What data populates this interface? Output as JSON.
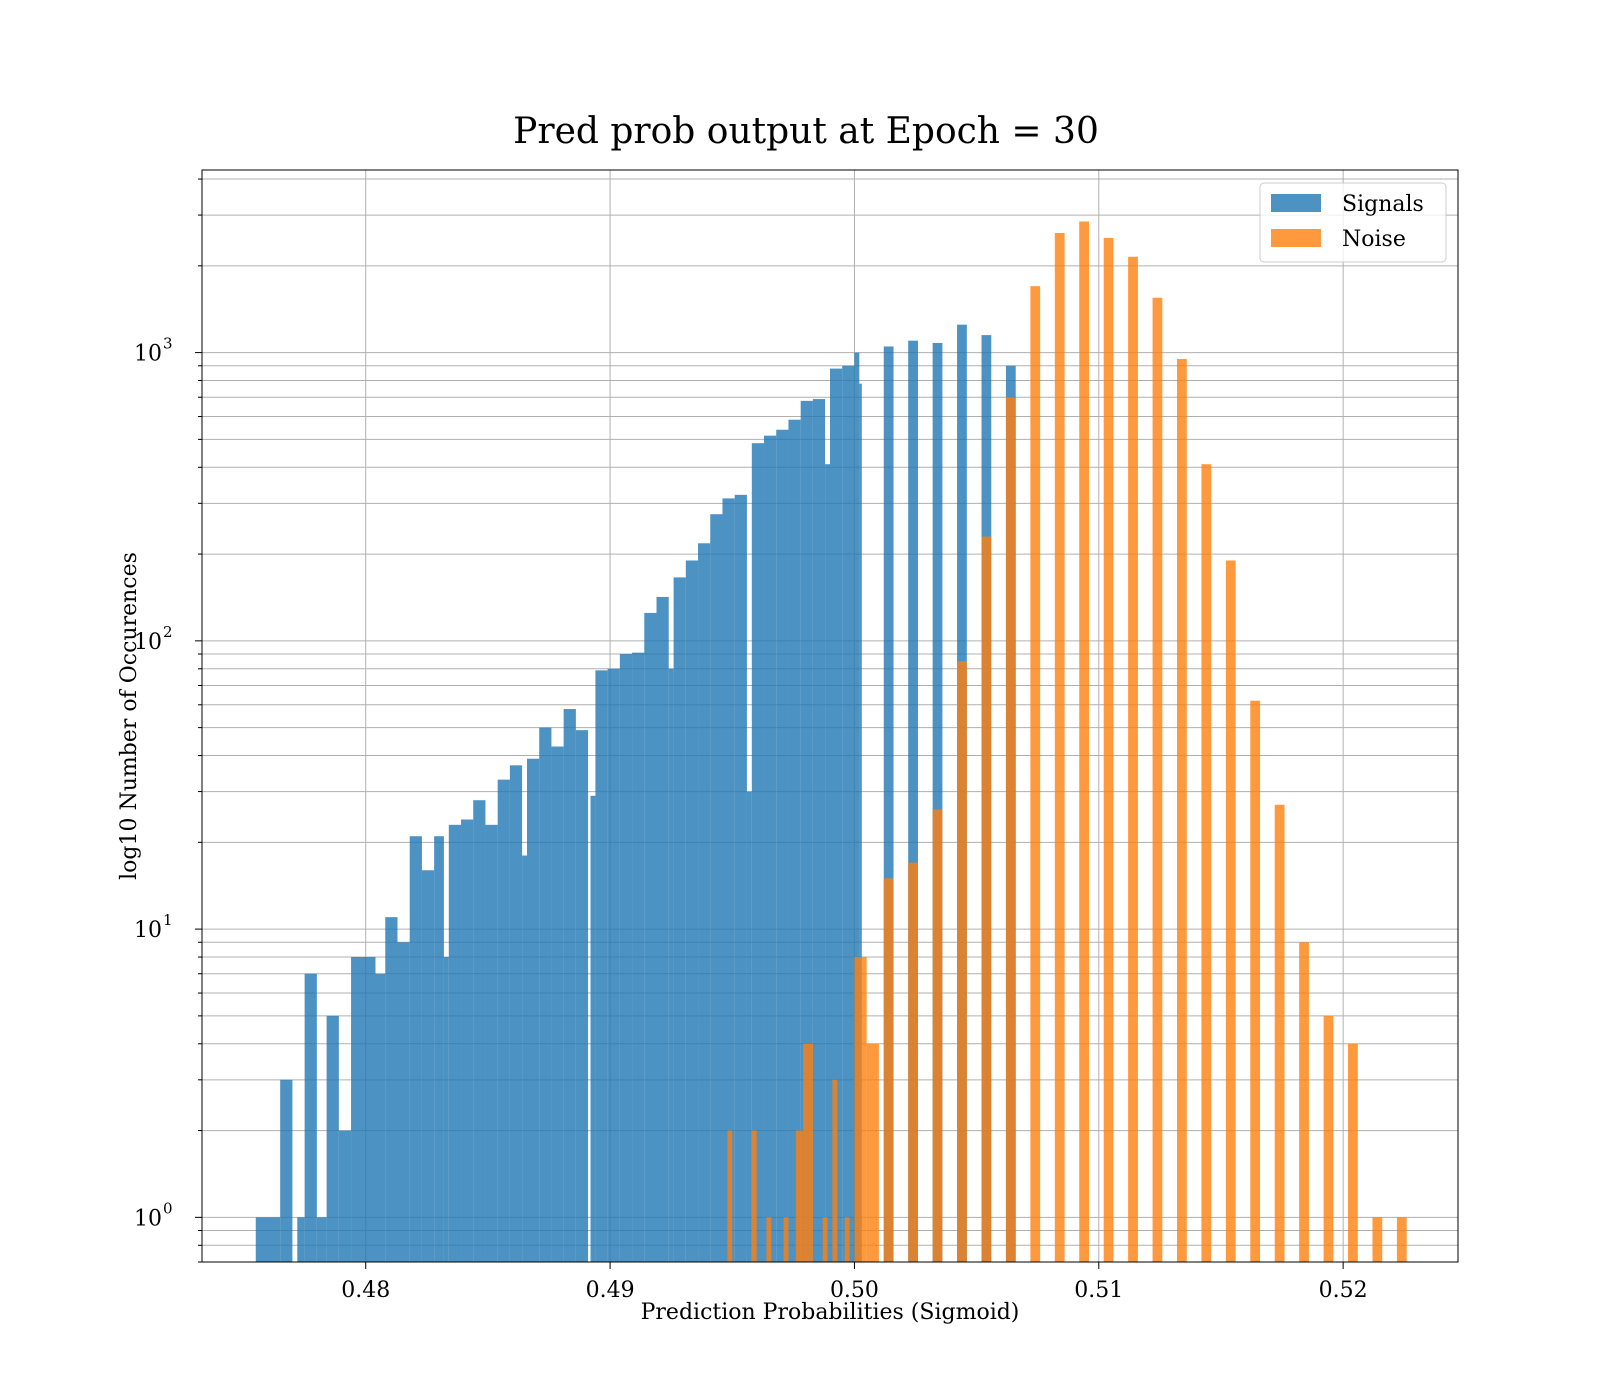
{
  "chart_data": {
    "type": "bar",
    "title": "Pred prob output at Epoch = 30",
    "xlabel": "Prediction Probabilities (Sigmoid)",
    "ylabel": "log10 Number of Occurences",
    "xlim": [
      0.4733,
      0.5247
    ],
    "ylim": [
      0.7,
      4300
    ],
    "yscale": "log",
    "grid": true,
    "legend_position": "top-right",
    "x_ticks": [
      {
        "value": 0.48,
        "label": "0.48"
      },
      {
        "value": 0.49,
        "label": "0.49"
      },
      {
        "value": 0.5,
        "label": "0.50"
      },
      {
        "value": 0.51,
        "label": "0.51"
      },
      {
        "value": 0.52,
        "label": "0.52"
      }
    ],
    "y_ticks": [
      {
        "value": 1,
        "base": "10",
        "exp": "0"
      },
      {
        "value": 10,
        "base": "10",
        "exp": "1"
      },
      {
        "value": 100,
        "base": "10",
        "exp": "2"
      },
      {
        "value": 1000,
        "base": "10",
        "exp": "3"
      }
    ],
    "series": [
      {
        "name": "Signals",
        "color": "#1f77b4",
        "opacity": 0.8,
        "bins": [
          [
            0.4755,
            0.4765,
            1
          ],
          [
            0.4765,
            0.477,
            3
          ],
          [
            0.4772,
            0.4775,
            1
          ],
          [
            0.4775,
            0.478,
            7
          ],
          [
            0.478,
            0.4784,
            1
          ],
          [
            0.4784,
            0.4789,
            5
          ],
          [
            0.4789,
            0.4794,
            2
          ],
          [
            0.4794,
            0.4804,
            8
          ],
          [
            0.4804,
            0.4808,
            7
          ],
          [
            0.4808,
            0.4813,
            11
          ],
          [
            0.4813,
            0.4818,
            9
          ],
          [
            0.4818,
            0.4823,
            21
          ],
          [
            0.4823,
            0.4828,
            16
          ],
          [
            0.4828,
            0.4832,
            21
          ],
          [
            0.4832,
            0.4834,
            8
          ],
          [
            0.4834,
            0.4839,
            23
          ],
          [
            0.4839,
            0.4844,
            24
          ],
          [
            0.4844,
            0.4849,
            28
          ],
          [
            0.4849,
            0.4854,
            23
          ],
          [
            0.4854,
            0.4859,
            33
          ],
          [
            0.4859,
            0.4864,
            37
          ],
          [
            0.4864,
            0.4866,
            18
          ],
          [
            0.4866,
            0.4871,
            39
          ],
          [
            0.4871,
            0.4876,
            50
          ],
          [
            0.4876,
            0.4881,
            43
          ],
          [
            0.4881,
            0.4886,
            58
          ],
          [
            0.4886,
            0.4891,
            49
          ],
          [
            0.4892,
            0.4894,
            29
          ],
          [
            0.4894,
            0.4899,
            79
          ],
          [
            0.4899,
            0.4904,
            80
          ],
          [
            0.4904,
            0.4909,
            90
          ],
          [
            0.4909,
            0.4914,
            91
          ],
          [
            0.4914,
            0.4919,
            125
          ],
          [
            0.4919,
            0.4924,
            142
          ],
          [
            0.4924,
            0.4926,
            80
          ],
          [
            0.4926,
            0.4931,
            166
          ],
          [
            0.4931,
            0.4936,
            190
          ],
          [
            0.4936,
            0.4941,
            218
          ],
          [
            0.4941,
            0.4946,
            275
          ],
          [
            0.4946,
            0.4951,
            312
          ],
          [
            0.4951,
            0.4956,
            321
          ],
          [
            0.4956,
            0.4958,
            30
          ],
          [
            0.4958,
            0.4963,
            485
          ],
          [
            0.4963,
            0.4968,
            515
          ],
          [
            0.4968,
            0.4973,
            540
          ],
          [
            0.4973,
            0.4978,
            585
          ],
          [
            0.4978,
            0.4983,
            680
          ],
          [
            0.4983,
            0.4988,
            690
          ],
          [
            0.4988,
            0.499,
            410
          ],
          [
            0.499,
            0.4995,
            880
          ],
          [
            0.4995,
            0.5,
            900
          ],
          [
            0.5,
            0.5002,
            1000
          ],
          [
            0.5002,
            0.5003,
            780
          ],
          [
            0.5012,
            0.5016,
            1050
          ],
          [
            0.5022,
            0.5026,
            1100
          ],
          [
            0.5032,
            0.5036,
            1080
          ],
          [
            0.5042,
            0.5046,
            1250
          ],
          [
            0.5052,
            0.5056,
            1150
          ],
          [
            0.5062,
            0.5066,
            900
          ]
        ]
      },
      {
        "name": "Noise",
        "color": "#ff7f0e",
        "opacity": 0.8,
        "bins": [
          [
            0.4948,
            0.495,
            2
          ],
          [
            0.4958,
            0.496,
            2
          ],
          [
            0.4964,
            0.4966,
            1
          ],
          [
            0.4971,
            0.4973,
            1
          ],
          [
            0.4976,
            0.4979,
            2
          ],
          [
            0.4979,
            0.4983,
            4
          ],
          [
            0.4987,
            0.4989,
            1
          ],
          [
            0.4991,
            0.4993,
            3
          ],
          [
            0.4996,
            0.4998,
            1
          ],
          [
            0.5,
            0.5005,
            8
          ],
          [
            0.5005,
            0.501,
            4
          ],
          [
            0.5012,
            0.5016,
            15
          ],
          [
            0.5022,
            0.5026,
            17
          ],
          [
            0.5032,
            0.5036,
            26
          ],
          [
            0.5042,
            0.5046,
            85
          ],
          [
            0.5052,
            0.5056,
            230
          ],
          [
            0.5062,
            0.5066,
            700
          ],
          [
            0.5072,
            0.5076,
            1700
          ],
          [
            0.5082,
            0.5086,
            2600
          ],
          [
            0.5092,
            0.5096,
            2850
          ],
          [
            0.5102,
            0.5106,
            2500
          ],
          [
            0.5112,
            0.5116,
            2150
          ],
          [
            0.5122,
            0.5126,
            1550
          ],
          [
            0.5132,
            0.5136,
            950
          ],
          [
            0.5142,
            0.5146,
            410
          ],
          [
            0.5152,
            0.5156,
            190
          ],
          [
            0.5162,
            0.5166,
            62
          ],
          [
            0.5172,
            0.5176,
            27
          ],
          [
            0.5182,
            0.5186,
            9
          ],
          [
            0.5192,
            0.5196,
            5
          ],
          [
            0.5202,
            0.5206,
            4
          ],
          [
            0.5212,
            0.5216,
            1
          ],
          [
            0.5222,
            0.5226,
            1
          ]
        ]
      }
    ]
  }
}
